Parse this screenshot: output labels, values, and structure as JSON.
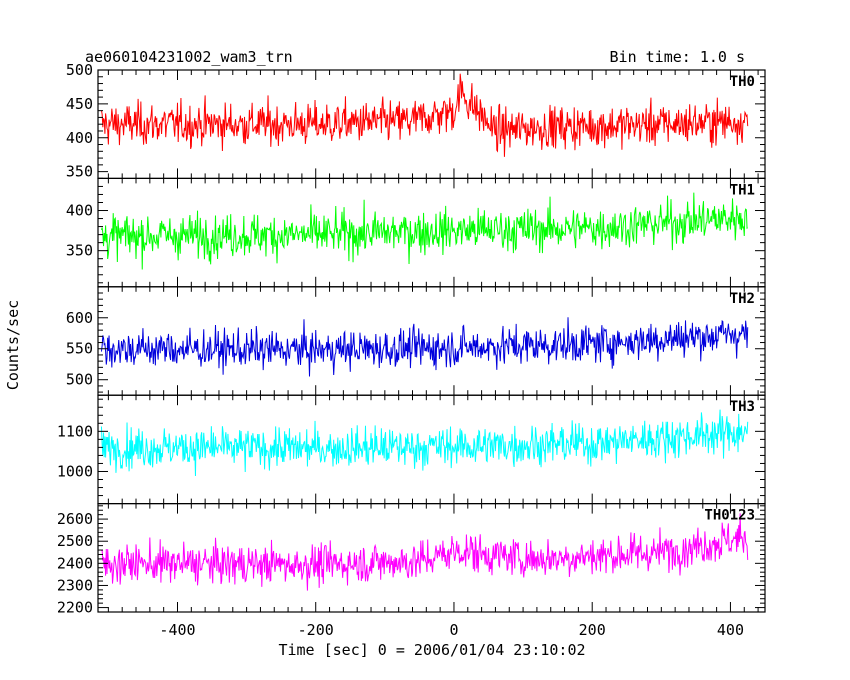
{
  "header": {
    "left_title": "ae060104231002_wam3_trn",
    "right_title": "Bin time: 1.0 s"
  },
  "chart_data": {
    "type": "line",
    "xlabel": "Time [sec] 0 = 2006/01/04 23:10:02",
    "ylabel": "Counts/sec",
    "xlim": [
      -515,
      450
    ],
    "data_xrange": [
      -510,
      425
    ],
    "bin_time_s": 1.0,
    "xticks": [
      -400,
      -200,
      0,
      200,
      400
    ],
    "grid": false,
    "legend": "none",
    "panels": [
      {
        "name": "TH0",
        "color": "#ff0000",
        "ylim": [
          340,
          500
        ],
        "yticks": [
          350,
          400,
          450,
          500
        ],
        "base": 420,
        "noise": 28,
        "trend": [
          [
            -510,
            420
          ],
          [
            -200,
            420
          ],
          [
            -60,
            425
          ],
          [
            0,
            440
          ],
          [
            10,
            470
          ],
          [
            20,
            455
          ],
          [
            60,
            410
          ],
          [
            120,
            415
          ],
          [
            300,
            420
          ],
          [
            425,
            425
          ]
        ]
      },
      {
        "name": "TH1",
        "color": "#00ff00",
        "ylim": [
          305,
          440
        ],
        "yticks": [
          350,
          400
        ],
        "base": 372,
        "noise": 24,
        "trend": [
          [
            -510,
            368
          ],
          [
            -200,
            370
          ],
          [
            0,
            375
          ],
          [
            200,
            378
          ],
          [
            425,
            392
          ]
        ]
      },
      {
        "name": "TH2",
        "color": "#0000dd",
        "ylim": [
          475,
          650
        ],
        "yticks": [
          500,
          550,
          600
        ],
        "base": 550,
        "noise": 28,
        "trend": [
          [
            -510,
            550
          ],
          [
            -200,
            548
          ],
          [
            0,
            552
          ],
          [
            200,
            558
          ],
          [
            425,
            575
          ]
        ]
      },
      {
        "name": "TH3",
        "color": "#00ffff",
        "ylim": [
          920,
          1190
        ],
        "yticks": [
          1000,
          1100
        ],
        "base": 1065,
        "noise": 45,
        "trend": [
          [
            -510,
            1060
          ],
          [
            -200,
            1058
          ],
          [
            0,
            1062
          ],
          [
            200,
            1070
          ],
          [
            425,
            1100
          ]
        ]
      },
      {
        "name": "TH0123",
        "color": "#ff00ff",
        "ylim": [
          2180,
          2670
        ],
        "yticks": [
          2200,
          2300,
          2400,
          2500,
          2600
        ],
        "base": 2410,
        "noise": 80,
        "trend": [
          [
            -510,
            2400
          ],
          [
            -200,
            2395
          ],
          [
            -50,
            2410
          ],
          [
            10,
            2460
          ],
          [
            40,
            2440
          ],
          [
            120,
            2420
          ],
          [
            300,
            2450
          ],
          [
            425,
            2520
          ]
        ]
      }
    ]
  }
}
